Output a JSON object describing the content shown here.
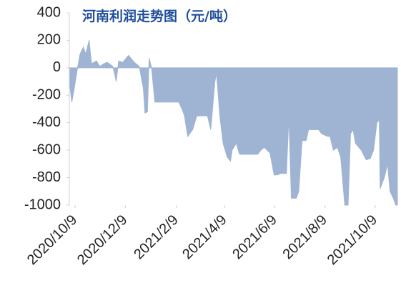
{
  "chart_data": {
    "type": "area",
    "title": "河南利润走势图（元/吨）",
    "color": "#9fb3d3",
    "x": [
      "2020/10/2",
      "2020/10/5",
      "2020/10/8",
      "2020/10/12",
      "2020/10/15",
      "2020/10/19",
      "2020/10/22",
      "2020/10/26",
      "2020/10/29",
      "2020/11/4",
      "2020/11/8",
      "2020/11/13",
      "2020/11/17",
      "2020/11/24",
      "2020/11/28",
      "2020/12/1",
      "2020/12/6",
      "2020/12/13",
      "2020/12/20",
      "2020/12/26",
      "2020/12/31",
      "2021/1/2",
      "2021/1/5",
      "2021/1/7",
      "2021/1/10",
      "2021/1/14",
      "2021/1/19",
      "2021/2/3",
      "2021/2/12",
      "2021/2/16",
      "2021/2/19",
      "2021/2/23",
      "2021/3/1",
      "2021/3/6",
      "2021/3/10",
      "2021/3/19",
      "2021/3/23",
      "2021/3/28",
      "2021/3/30",
      "2021/4/3",
      "2021/4/7",
      "2021/4/12",
      "2021/4/16",
      "2021/4/18",
      "2021/4/23",
      "2021/4/27",
      "2021/5/19",
      "2021/5/23",
      "2021/5/27",
      "2021/6/3",
      "2021/6/8",
      "2021/6/12",
      "2021/6/16",
      "2021/6/23",
      "2021/6/26",
      "2021/6/29",
      "2021/7/5",
      "2021/7/8",
      "2021/7/12",
      "2021/7/17",
      "2021/7/20",
      "2021/8/1",
      "2021/8/5",
      "2021/8/12",
      "2021/8/15",
      "2021/8/19",
      "2021/8/24",
      "2021/8/28",
      "2021/9/2",
      "2021/9/6",
      "2021/9/9",
      "2021/9/12",
      "2021/9/15",
      "2021/9/22",
      "2021/9/28",
      "2021/10/3",
      "2021/10/7",
      "2021/10/11",
      "2021/10/14",
      "2021/10/15",
      "2021/10/20",
      "2021/10/24",
      "2021/10/27",
      "2021/10/31",
      "2021/11/3",
      "2021/11/5"
    ],
    "values": [
      -100,
      -250,
      -150,
      0,
      100,
      150,
      100,
      200,
      30,
      50,
      10,
      30,
      40,
      10,
      -100,
      50,
      40,
      90,
      40,
      10,
      -150,
      -330,
      -320,
      70,
      0,
      -250,
      -250,
      -250,
      -250,
      -300,
      -350,
      -500,
      -450,
      -350,
      -350,
      -350,
      -450,
      -100,
      -40,
      -350,
      -550,
      -650,
      -680,
      -600,
      -550,
      -630,
      -630,
      -600,
      -580,
      -620,
      -780,
      -780,
      -770,
      -770,
      -350,
      -950,
      -950,
      -900,
      -530,
      -530,
      -450,
      -450,
      -480,
      -500,
      -500,
      -600,
      -580,
      -650,
      -1000,
      -1000,
      -480,
      -450,
      -550,
      -600,
      -670,
      -660,
      -600,
      -400,
      -380,
      -880,
      -800,
      -700,
      -900,
      -950,
      -1000,
      -1000
    ],
    "xlim": [
      "2020/10/2",
      "2021/11/5"
    ],
    "xticks": [
      "2020/10/9",
      "2020/12/9",
      "2021/2/9",
      "2021/4/9",
      "2021/6/9",
      "2021/8/9",
      "2021/10/9"
    ],
    "ylim": [
      -1000,
      400
    ],
    "yticks": [
      -1000,
      -800,
      -600,
      -400,
      -200,
      0,
      200,
      400
    ]
  }
}
